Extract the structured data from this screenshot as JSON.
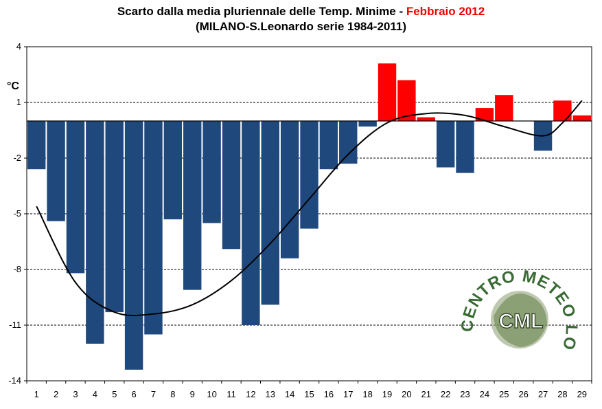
{
  "chart_data": {
    "type": "bar",
    "title_main": "Scarto dalla media pluriennale delle Temp. Minime - ",
    "title_highlight": "Febbraio 2012",
    "subtitle": "(MILANO-S.Leonardo serie 1984-2011)",
    "ylabel": "°C",
    "xlabel": "",
    "ylim": [
      -14,
      4
    ],
    "yticks": [
      4,
      1,
      -2,
      -5,
      -8,
      -11,
      -14
    ],
    "categories": [
      "1",
      "2",
      "3",
      "4",
      "5",
      "6",
      "7",
      "8",
      "9",
      "10",
      "11",
      "12",
      "13",
      "14",
      "15",
      "16",
      "17",
      "18",
      "19",
      "20",
      "21",
      "22",
      "23",
      "24",
      "25",
      "26",
      "27",
      "28",
      "29"
    ],
    "values": [
      -2.6,
      -5.4,
      -8.2,
      -12.0,
      -10.3,
      -13.4,
      -11.5,
      -5.3,
      -9.1,
      -5.5,
      -6.9,
      -11.0,
      -9.9,
      -7.4,
      -5.8,
      -2.6,
      -2.3,
      -0.3,
      3.1,
      2.2,
      0.2,
      -2.5,
      -2.8,
      0.7,
      1.4,
      0.0,
      -1.6,
      1.1,
      0.3
    ],
    "colors": {
      "negative": "#1f497d",
      "positive": "#ff0000"
    },
    "trend": {
      "type": "polynomial",
      "x": [
        1,
        3,
        5,
        7,
        9,
        11,
        13,
        15,
        17,
        19,
        21,
        23,
        25,
        27,
        28,
        29
      ],
      "y": [
        -4.6,
        -8.7,
        -10.3,
        -10.4,
        -9.9,
        -8.6,
        -6.6,
        -4.2,
        -1.8,
        -0.1,
        0.4,
        0.3,
        -0.3,
        -0.8,
        -0.1,
        1.1
      ]
    },
    "grid": "horizontal dashed"
  },
  "watermark": {
    "arc_text": "CENTRO METEO LOMBARDO",
    "abbreviation": "CML",
    "color": "#3a6b35"
  }
}
